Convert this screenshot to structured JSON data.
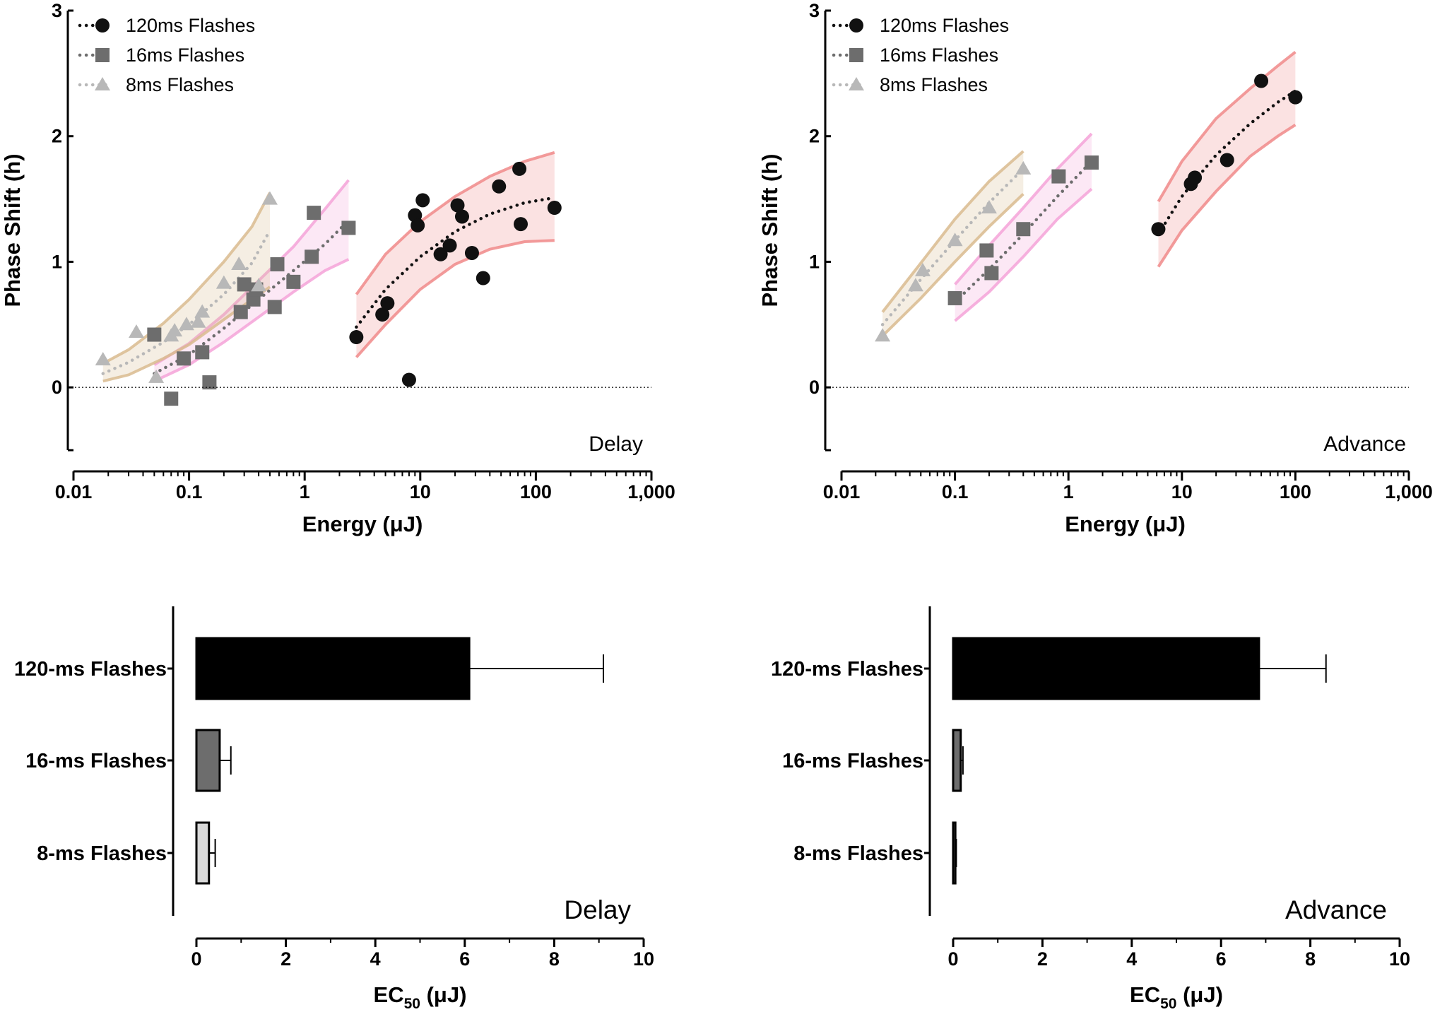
{
  "chart_data": [
    {
      "type": "scatter",
      "panel": "top-left",
      "corner_label": "Delay",
      "xlabel": "Energy (μJ)",
      "ylabel": "Phase Shift (h)",
      "xscale": "log",
      "xlim": [
        0.01,
        1000
      ],
      "ylim": [
        -0.5,
        3
      ],
      "xticks": [
        0.01,
        0.1,
        1,
        10,
        100,
        1000
      ],
      "xtick_labels": [
        "0.01",
        "0.1",
        "1",
        "10",
        "100",
        "1,000"
      ],
      "yticks": [
        0,
        1,
        2,
        3
      ],
      "ytick_labels": [
        "0",
        "1",
        "2",
        "3"
      ],
      "legend_position": "top-left",
      "series": [
        {
          "name": "120ms Flashes",
          "marker": "circle",
          "color": "#111111",
          "band_color": "#f08a8a",
          "x": [
            2.8,
            4.7,
            5.2,
            8.0,
            9.0,
            9.5,
            10.5,
            15.0,
            18.0,
            21.0,
            23.0,
            28.0,
            35.0,
            48.0,
            72.0,
            74.0,
            145.0
          ],
          "y": [
            0.4,
            0.58,
            0.67,
            0.06,
            1.37,
            1.29,
            1.49,
            1.06,
            1.13,
            1.45,
            1.36,
            1.07,
            0.87,
            1.6,
            1.74,
            1.3,
            1.43
          ],
          "fit": {
            "x": [
              2.8,
              5,
              10,
              20,
              40,
              80,
              145
            ],
            "y": [
              0.48,
              0.78,
              1.04,
              1.24,
              1.38,
              1.47,
              1.51
            ]
          },
          "band": {
            "x": [
              2.8,
              5,
              10,
              20,
              40,
              80,
              145
            ],
            "lo": [
              0.24,
              0.5,
              0.78,
              0.98,
              1.1,
              1.16,
              1.17
            ],
            "hi": [
              0.74,
              1.06,
              1.32,
              1.52,
              1.68,
              1.8,
              1.87
            ]
          }
        },
        {
          "name": "16ms Flashes",
          "marker": "square",
          "color": "#6d6d6d",
          "band_color": "#f5a3d8",
          "x": [
            0.05,
            0.07,
            0.09,
            0.13,
            0.15,
            0.28,
            0.3,
            0.36,
            0.38,
            0.55,
            0.58,
            0.8,
            1.15,
            1.2,
            2.4
          ],
          "y": [
            0.42,
            -0.09,
            0.23,
            0.28,
            0.04,
            0.6,
            0.82,
            0.7,
            0.78,
            0.64,
            0.98,
            0.84,
            1.04,
            1.39,
            1.27
          ],
          "fit": {
            "x": [
              0.05,
              0.1,
              0.2,
              0.4,
              0.8,
              1.5,
              2.4
            ],
            "y": [
              0.11,
              0.26,
              0.47,
              0.7,
              0.93,
              1.14,
              1.33
            ]
          },
          "band": {
            "x": [
              0.05,
              0.1,
              0.2,
              0.4,
              0.8,
              1.5,
              2.4
            ],
            "lo": [
              0.05,
              0.18,
              0.36,
              0.56,
              0.76,
              0.93,
              1.02
            ],
            "hi": [
              0.18,
              0.35,
              0.58,
              0.85,
              1.12,
              1.42,
              1.65
            ]
          }
        },
        {
          "name": "8ms Flashes",
          "marker": "triangle",
          "color": "#b8b8b8",
          "band_color": "#d9bb8f",
          "x": [
            0.018,
            0.035,
            0.052,
            0.07,
            0.075,
            0.095,
            0.12,
            0.13,
            0.2,
            0.27,
            0.4,
            0.5
          ],
          "y": [
            0.22,
            0.44,
            0.08,
            0.41,
            0.45,
            0.5,
            0.52,
            0.6,
            0.83,
            0.98,
            0.81,
            1.5
          ],
          "fit": {
            "x": [
              0.018,
              0.03,
              0.06,
              0.1,
              0.2,
              0.35,
              0.5
            ],
            "y": [
              0.11,
              0.2,
              0.36,
              0.5,
              0.74,
              0.99,
              1.25
            ]
          },
          "band": {
            "x": [
              0.018,
              0.03,
              0.06,
              0.1,
              0.2,
              0.35,
              0.5
            ],
            "lo": [
              0.05,
              0.1,
              0.23,
              0.34,
              0.54,
              0.7,
              0.8
            ],
            "hi": [
              0.19,
              0.3,
              0.51,
              0.7,
              1.0,
              1.28,
              1.55
            ]
          }
        }
      ]
    },
    {
      "type": "scatter",
      "panel": "top-right",
      "corner_label": "Advance",
      "xlabel": "Energy (μJ)",
      "ylabel": "Phase Shift (h)",
      "xscale": "log",
      "xlim": [
        0.01,
        1000
      ],
      "ylim": [
        -0.5,
        3
      ],
      "xticks": [
        0.01,
        0.1,
        1,
        10,
        100,
        1000
      ],
      "xtick_labels": [
        "0.01",
        "0.1",
        "1",
        "10",
        "100",
        "1,000"
      ],
      "yticks": [
        0,
        1,
        2,
        3
      ],
      "ytick_labels": [
        "0",
        "1",
        "2",
        "3"
      ],
      "legend_position": "top-left",
      "series": [
        {
          "name": "120ms Flashes",
          "marker": "circle",
          "color": "#111111",
          "band_color": "#f08a8a",
          "x": [
            6.2,
            12.0,
            13.0,
            25.0,
            50.0,
            100.0
          ],
          "y": [
            1.26,
            1.62,
            1.67,
            1.81,
            2.44,
            2.31
          ],
          "fit": {
            "x": [
              6.2,
              10,
              20,
              40,
              70,
              100
            ],
            "y": [
              1.22,
              1.52,
              1.85,
              2.1,
              2.27,
              2.36
            ]
          },
          "band": {
            "x": [
              6.2,
              10,
              20,
              40,
              70,
              100
            ],
            "lo": [
              0.96,
              1.25,
              1.56,
              1.84,
              2.0,
              2.09
            ],
            "hi": [
              1.48,
              1.8,
              2.14,
              2.38,
              2.56,
              2.67
            ]
          }
        },
        {
          "name": "16ms Flashes",
          "marker": "square",
          "color": "#6d6d6d",
          "band_color": "#f5a3d8",
          "x": [
            0.1,
            0.19,
            0.21,
            0.4,
            0.82,
            1.6
          ],
          "y": [
            0.71,
            1.09,
            0.91,
            1.26,
            1.68,
            1.79
          ],
          "fit": {
            "x": [
              0.1,
              0.2,
              0.4,
              0.8,
              1.6
            ],
            "y": [
              0.68,
              0.94,
              1.22,
              1.52,
              1.8
            ]
          },
          "band": {
            "x": [
              0.1,
              0.2,
              0.4,
              0.8,
              1.6
            ],
            "lo": [
              0.53,
              0.76,
              1.04,
              1.34,
              1.58
            ],
            "hi": [
              0.82,
              1.13,
              1.43,
              1.74,
              2.02
            ]
          }
        },
        {
          "name": "8ms Flashes",
          "marker": "triangle",
          "color": "#b8b8b8",
          "band_color": "#d9bb8f",
          "x": [
            0.023,
            0.045,
            0.052,
            0.1,
            0.2,
            0.4
          ],
          "y": [
            0.41,
            0.81,
            0.93,
            1.17,
            1.43,
            1.74
          ],
          "fit": {
            "x": [
              0.023,
              0.05,
              0.1,
              0.2,
              0.4
            ],
            "y": [
              0.5,
              0.86,
              1.17,
              1.47,
              1.74
            ]
          },
          "band": {
            "x": [
              0.023,
              0.05,
              0.1,
              0.2,
              0.4
            ],
            "lo": [
              0.41,
              0.71,
              1.0,
              1.28,
              1.54
            ],
            "hi": [
              0.6,
              0.99,
              1.34,
              1.64,
              1.88
            ]
          }
        }
      ]
    },
    {
      "type": "bar",
      "panel": "bottom-left",
      "orientation": "horizontal",
      "corner_label": "Delay",
      "categories": [
        "120-ms Flashes",
        "16-ms Flashes",
        "8-ms Flashes"
      ],
      "values": [
        6.1,
        0.52,
        0.28
      ],
      "errors": [
        3.0,
        0.25,
        0.14
      ],
      "colors": [
        "#000000",
        "#6d6d6d",
        "#d9d9d9"
      ],
      "xlabel": "EC",
      "xlabel_sub": "50",
      "xlabel_unit": " (μJ)",
      "xlim": [
        0,
        10
      ],
      "xticks": [
        0,
        2,
        4,
        6,
        8,
        10
      ],
      "xtick_labels": [
        "0",
        "2",
        "4",
        "6",
        "8",
        "10"
      ]
    },
    {
      "type": "bar",
      "panel": "bottom-right",
      "orientation": "horizontal",
      "corner_label": "Advance",
      "categories": [
        "120-ms Flashes",
        "16-ms Flashes",
        "8-ms Flashes"
      ],
      "values": [
        6.85,
        0.17,
        0.05
      ],
      "errors": [
        1.5,
        0.05,
        0.02
      ],
      "colors": [
        "#000000",
        "#6d6d6d",
        "#d9d9d9"
      ],
      "xlabel": "EC",
      "xlabel_sub": "50",
      "xlabel_unit": " (μJ)",
      "xlim": [
        0,
        10
      ],
      "xticks": [
        0,
        2,
        4,
        6,
        8,
        10
      ],
      "xtick_labels": [
        "0",
        "2",
        "4",
        "6",
        "8",
        "10"
      ]
    }
  ]
}
